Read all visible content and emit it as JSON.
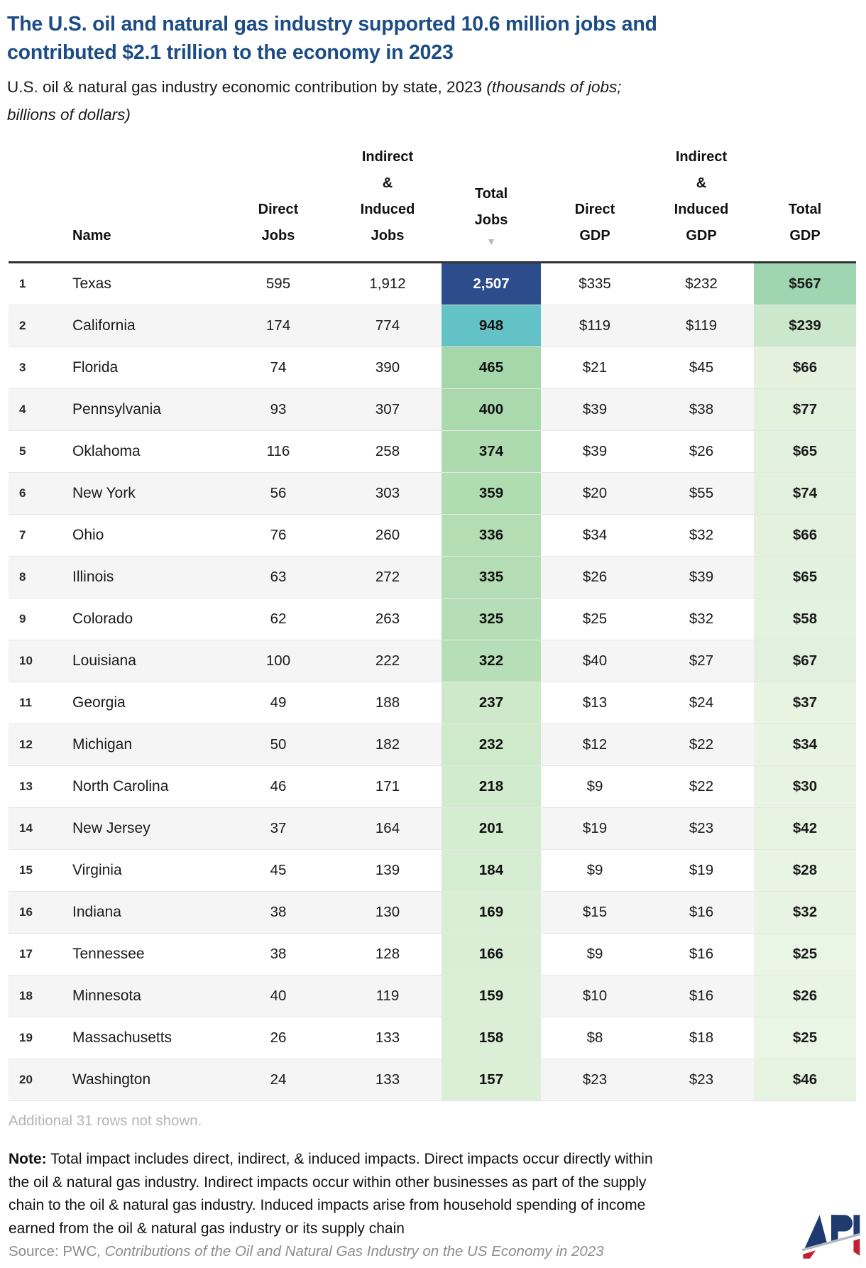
{
  "header": {
    "title_line1": "The U.S. oil and natural gas industry supported 10.6 million jobs and",
    "title_line2": "contributed $2.1 trillion to the economy in 2023",
    "subtitle_plain": "U.S. oil & natural gas industry economic contribution by state, 2023 ",
    "subtitle_italic_line1": "(thousands of jobs;",
    "subtitle_italic_line2": "billions of dollars)"
  },
  "table": {
    "columns": [
      {
        "id": "rank",
        "lines": []
      },
      {
        "id": "name",
        "lines": [
          "Name"
        ]
      },
      {
        "id": "direct_jobs",
        "lines": [
          "Direct",
          "Jobs"
        ]
      },
      {
        "id": "indirect_induced_jobs",
        "lines": [
          "Indirect",
          "&",
          "Induced",
          "Jobs"
        ]
      },
      {
        "id": "total_jobs",
        "lines": [
          "Total",
          "Jobs"
        ],
        "sort_icon": "▼",
        "sorted": "descending"
      },
      {
        "id": "direct_gdp",
        "lines": [
          "Direct",
          "GDP"
        ]
      },
      {
        "id": "indirect_induced_gdp",
        "lines": [
          "Indirect",
          "&",
          "Induced",
          "GDP"
        ]
      },
      {
        "id": "total_gdp",
        "lines": [
          "Total",
          "GDP"
        ]
      }
    ],
    "rows": [
      {
        "rank": "1",
        "name": "Texas",
        "direct_jobs": "595",
        "indirect_jobs": "1,912",
        "total_jobs": "2,507",
        "direct_gdp": "$335",
        "indirect_gdp": "$232",
        "total_gdp": "$567",
        "total_jobs_bg": "#2c4c8c",
        "total_jobs_fg": "#ffffff",
        "total_gdp_bg": "#9fd5b1"
      },
      {
        "rank": "2",
        "name": "California",
        "direct_jobs": "174",
        "indirect_jobs": "774",
        "total_jobs": "948",
        "direct_gdp": "$119",
        "indirect_gdp": "$119",
        "total_gdp": "$239",
        "total_jobs_bg": "#63c2c6",
        "total_jobs_fg": "#111111",
        "total_gdp_bg": "#cbe8cc"
      },
      {
        "rank": "3",
        "name": "Florida",
        "direct_jobs": "74",
        "indirect_jobs": "390",
        "total_jobs": "465",
        "direct_gdp": "$21",
        "indirect_gdp": "$45",
        "total_gdp": "$66",
        "total_jobs_bg": "#a5d7ab",
        "total_jobs_fg": "#111111",
        "total_gdp_bg": "#e3f1de"
      },
      {
        "rank": "4",
        "name": "Pennsylvania",
        "direct_jobs": "93",
        "indirect_jobs": "307",
        "total_jobs": "400",
        "direct_gdp": "$39",
        "indirect_gdp": "$38",
        "total_gdp": "$77",
        "total_jobs_bg": "#aad9ad",
        "total_jobs_fg": "#111111",
        "total_gdp_bg": "#e2f1dd"
      },
      {
        "rank": "5",
        "name": "Oklahoma",
        "direct_jobs": "116",
        "indirect_jobs": "258",
        "total_jobs": "374",
        "direct_gdp": "$39",
        "indirect_gdp": "$26",
        "total_gdp": "$65",
        "total_jobs_bg": "#addbaf",
        "total_jobs_fg": "#111111",
        "total_gdp_bg": "#e3f2df"
      },
      {
        "rank": "6",
        "name": "New York",
        "direct_jobs": "56",
        "indirect_jobs": "303",
        "total_jobs": "359",
        "direct_gdp": "$20",
        "indirect_gdp": "$55",
        "total_gdp": "$74",
        "total_jobs_bg": "#afdcb1",
        "total_jobs_fg": "#111111",
        "total_gdp_bg": "#e2f1de"
      },
      {
        "rank": "7",
        "name": "Ohio",
        "direct_jobs": "76",
        "indirect_jobs": "260",
        "total_jobs": "336",
        "direct_gdp": "$34",
        "indirect_gdp": "$32",
        "total_gdp": "$66",
        "total_jobs_bg": "#b4ddb4",
        "total_jobs_fg": "#111111",
        "total_gdp_bg": "#e3f1de"
      },
      {
        "rank": "8",
        "name": "Illinois",
        "direct_jobs": "63",
        "indirect_jobs": "272",
        "total_jobs": "335",
        "direct_gdp": "$26",
        "indirect_gdp": "$39",
        "total_gdp": "$65",
        "total_jobs_bg": "#b4ddb5",
        "total_jobs_fg": "#111111",
        "total_gdp_bg": "#e3f2df"
      },
      {
        "rank": "9",
        "name": "Colorado",
        "direct_jobs": "62",
        "indirect_jobs": "263",
        "total_jobs": "325",
        "direct_gdp": "$25",
        "indirect_gdp": "$32",
        "total_gdp": "$58",
        "total_jobs_bg": "#b6deb6",
        "total_jobs_fg": "#111111",
        "total_gdp_bg": "#e4f2e0"
      },
      {
        "rank": "10",
        "name": "Louisiana",
        "direct_jobs": "100",
        "indirect_jobs": "222",
        "total_jobs": "322",
        "direct_gdp": "$40",
        "indirect_gdp": "$27",
        "total_gdp": "$67",
        "total_jobs_bg": "#b7dfb7",
        "total_jobs_fg": "#111111",
        "total_gdp_bg": "#e2f1df"
      },
      {
        "rank": "11",
        "name": "Georgia",
        "direct_jobs": "49",
        "indirect_jobs": "188",
        "total_jobs": "237",
        "direct_gdp": "$13",
        "indirect_gdp": "$24",
        "total_gdp": "$37",
        "total_jobs_bg": "#cde9ca",
        "total_jobs_fg": "#111111",
        "total_gdp_bg": "#e7f4e2"
      },
      {
        "rank": "12",
        "name": "Michigan",
        "direct_jobs": "50",
        "indirect_jobs": "182",
        "total_jobs": "232",
        "direct_gdp": "$12",
        "indirect_gdp": "$22",
        "total_gdp": "$34",
        "total_jobs_bg": "#cfeacb",
        "total_jobs_fg": "#111111",
        "total_gdp_bg": "#e8f4e3"
      },
      {
        "rank": "13",
        "name": "North Carolina",
        "direct_jobs": "46",
        "indirect_jobs": "171",
        "total_jobs": "218",
        "direct_gdp": "$9",
        "indirect_gdp": "$22",
        "total_gdp": "$30",
        "total_jobs_bg": "#d1ebce",
        "total_jobs_fg": "#111111",
        "total_gdp_bg": "#e8f4e3"
      },
      {
        "rank": "14",
        "name": "New Jersey",
        "direct_jobs": "37",
        "indirect_jobs": "164",
        "total_jobs": "201",
        "direct_gdp": "$19",
        "indirect_gdp": "$23",
        "total_gdp": "$42",
        "total_jobs_bg": "#d4ecd0",
        "total_jobs_fg": "#111111",
        "total_gdp_bg": "#e6f3e1"
      },
      {
        "rank": "15",
        "name": "Virginia",
        "direct_jobs": "45",
        "indirect_jobs": "139",
        "total_jobs": "184",
        "direct_gdp": "$9",
        "indirect_gdp": "$19",
        "total_gdp": "$28",
        "total_jobs_bg": "#d7edd3",
        "total_jobs_fg": "#111111",
        "total_gdp_bg": "#e9f5e4"
      },
      {
        "rank": "16",
        "name": "Indiana",
        "direct_jobs": "38",
        "indirect_jobs": "130",
        "total_jobs": "169",
        "direct_gdp": "$15",
        "indirect_gdp": "$16",
        "total_gdp": "$32",
        "total_jobs_bg": "#d9eed4",
        "total_jobs_fg": "#111111",
        "total_gdp_bg": "#e8f4e3"
      },
      {
        "rank": "17",
        "name": "Tennessee",
        "direct_jobs": "38",
        "indirect_jobs": "128",
        "total_jobs": "166",
        "direct_gdp": "$9",
        "indirect_gdp": "$16",
        "total_gdp": "$25",
        "total_jobs_bg": "#d9eed5",
        "total_jobs_fg": "#111111",
        "total_gdp_bg": "#e9f5e5"
      },
      {
        "rank": "18",
        "name": "Minnesota",
        "direct_jobs": "40",
        "indirect_jobs": "119",
        "total_jobs": "159",
        "direct_gdp": "$10",
        "indirect_gdp": "$16",
        "total_gdp": "$26",
        "total_jobs_bg": "#daefd5",
        "total_jobs_fg": "#111111",
        "total_gdp_bg": "#e9f5e4"
      },
      {
        "rank": "19",
        "name": "Massachusetts",
        "direct_jobs": "26",
        "indirect_jobs": "133",
        "total_jobs": "158",
        "direct_gdp": "$8",
        "indirect_gdp": "$18",
        "total_gdp": "$25",
        "total_jobs_bg": "#daefd6",
        "total_jobs_fg": "#111111",
        "total_gdp_bg": "#e9f5e5"
      },
      {
        "rank": "20",
        "name": "Washington",
        "direct_jobs": "24",
        "indirect_jobs": "133",
        "total_jobs": "157",
        "direct_gdp": "$23",
        "indirect_gdp": "$23",
        "total_gdp": "$46",
        "total_jobs_bg": "#daefd6",
        "total_jobs_fg": "#111111",
        "total_gdp_bg": "#e6f3e1"
      }
    ]
  },
  "footer": {
    "rows_not_shown": "Additional 31 rows not shown.",
    "note_label": "Note:",
    "note_lines": [
      "Total impact includes direct, indirect, & induced impacts. Direct impacts occur directly within",
      "the oil & natural gas industry. Indirect impacts occur within other businesses as part of the supply",
      "chain to the oil & natural gas industry. Induced impacts arise from household spending of income",
      "earned from the oil & natural gas industry or its supply chain"
    ],
    "source_prefix": "Source: PWC, ",
    "source_title": "Contributions of the Oil and Natural Gas Industry on the US Economy in 2023",
    "logo": {
      "name": "API",
      "navy": "#1e3a6e",
      "red": "#c32033",
      "gray": "#b4b8bf"
    }
  },
  "colors": {
    "title_blue": "#1b4c85",
    "stripe_gray": "#f5f5f5",
    "scale_max_blue": "#2c4c8c",
    "scale_teal": "#63c2c6",
    "scale_green": "#a5d7ab",
    "sort_arrow_gray": "#b9b9b9"
  },
  "chart_data": {
    "type": "table",
    "title": "The U.S. oil and natural gas industry supported 10.6 million jobs and contributed $2.1 trillion to the economy in 2023",
    "subtitle": "U.S. oil & natural gas industry economic contribution by state, 2023 (thousands of jobs; billions of dollars)",
    "columns": [
      "Rank",
      "Name",
      "Direct Jobs",
      "Indirect & Induced Jobs",
      "Total Jobs",
      "Direct GDP",
      "Indirect & Induced GDP",
      "Total GDP"
    ],
    "units": {
      "jobs": "thousands of jobs",
      "gdp": "billions of dollars"
    },
    "sorted_by": "Total Jobs descending",
    "rows": [
      [
        1,
        "Texas",
        595,
        1912,
        2507,
        335,
        232,
        567
      ],
      [
        2,
        "California",
        174,
        774,
        948,
        119,
        119,
        239
      ],
      [
        3,
        "Florida",
        74,
        390,
        465,
        21,
        45,
        66
      ],
      [
        4,
        "Pennsylvania",
        93,
        307,
        400,
        39,
        38,
        77
      ],
      [
        5,
        "Oklahoma",
        116,
        258,
        374,
        39,
        26,
        65
      ],
      [
        6,
        "New York",
        56,
        303,
        359,
        20,
        55,
        74
      ],
      [
        7,
        "Ohio",
        76,
        260,
        336,
        34,
        32,
        66
      ],
      [
        8,
        "Illinois",
        63,
        272,
        335,
        26,
        39,
        65
      ],
      [
        9,
        "Colorado",
        62,
        263,
        325,
        25,
        32,
        58
      ],
      [
        10,
        "Louisiana",
        100,
        222,
        322,
        40,
        27,
        67
      ],
      [
        11,
        "Georgia",
        49,
        188,
        237,
        13,
        24,
        37
      ],
      [
        12,
        "Michigan",
        50,
        182,
        232,
        12,
        22,
        34
      ],
      [
        13,
        "North Carolina",
        46,
        171,
        218,
        9,
        22,
        30
      ],
      [
        14,
        "New Jersey",
        37,
        164,
        201,
        19,
        23,
        42
      ],
      [
        15,
        "Virginia",
        45,
        139,
        184,
        9,
        19,
        28
      ],
      [
        16,
        "Indiana",
        38,
        130,
        169,
        15,
        16,
        32
      ],
      [
        17,
        "Tennessee",
        38,
        128,
        166,
        9,
        16,
        25
      ],
      [
        18,
        "Minnesota",
        40,
        119,
        159,
        10,
        16,
        26
      ],
      [
        19,
        "Massachusetts",
        26,
        133,
        158,
        8,
        18,
        25
      ],
      [
        20,
        "Washington",
        24,
        133,
        157,
        23,
        23,
        46
      ]
    ],
    "rows_not_shown": 31
  }
}
